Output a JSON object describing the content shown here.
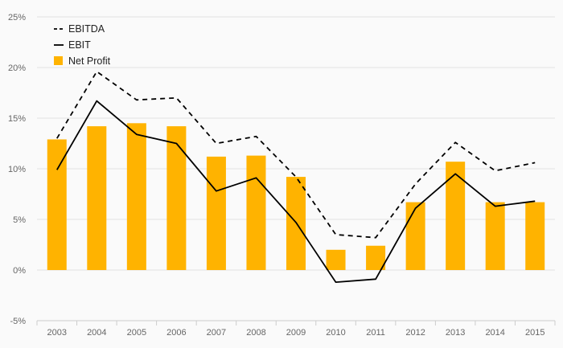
{
  "chart_data": {
    "type": "bar",
    "title": "",
    "xlabel": "",
    "ylabel": "",
    "categories": [
      "2003",
      "2004",
      "2005",
      "2006",
      "2007",
      "2008",
      "2009",
      "2010",
      "2011",
      "2012",
      "2013",
      "2014",
      "2015"
    ],
    "ylim": [
      -5,
      25
    ],
    "yticks": [
      -5,
      0,
      5,
      10,
      15,
      20,
      25
    ],
    "ytick_labels": [
      "-5%",
      "0%",
      "5%",
      "10%",
      "15%",
      "20%",
      "25%"
    ],
    "grid": true,
    "legend_position": "top-left",
    "series": [
      {
        "name": "EBITDA",
        "type": "line",
        "style": "dashed",
        "color": "#000000",
        "values": [
          13.0,
          19.6,
          16.8,
          17.0,
          12.5,
          13.2,
          9.2,
          3.5,
          3.2,
          8.5,
          12.6,
          9.8,
          10.6
        ]
      },
      {
        "name": "EBIT",
        "type": "line",
        "style": "solid",
        "color": "#000000",
        "values": [
          9.9,
          16.7,
          13.4,
          12.5,
          7.8,
          9.1,
          4.7,
          -1.2,
          -0.9,
          6.1,
          9.5,
          6.3,
          6.8
        ]
      },
      {
        "name": "Net Profit",
        "type": "bar",
        "color": "#FFB300",
        "values": [
          12.9,
          14.2,
          14.5,
          14.2,
          11.2,
          11.3,
          9.2,
          2.0,
          2.4,
          6.7,
          10.7,
          6.7,
          6.7
        ]
      }
    ]
  }
}
